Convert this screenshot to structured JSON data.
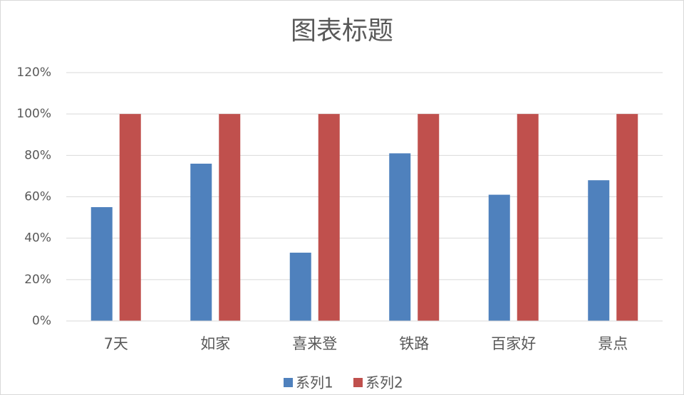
{
  "chart_data": {
    "type": "bar",
    "title": "图表标题",
    "categories": [
      "7天",
      "如家",
      "喜来登",
      "铁路",
      "百家好",
      "景点"
    ],
    "series": [
      {
        "name": "系列1",
        "color": "#4f81bd",
        "values": [
          55,
          76,
          33,
          81,
          61,
          68
        ]
      },
      {
        "name": "系列2",
        "color": "#c0504d",
        "values": [
          100,
          100,
          100,
          100,
          100,
          100
        ]
      }
    ],
    "ylim": [
      0,
      120
    ],
    "yticks": [
      {
        "value": 0,
        "label": "0%"
      },
      {
        "value": 20,
        "label": "20%"
      },
      {
        "value": 40,
        "label": "40%"
      },
      {
        "value": 60,
        "label": "60%"
      },
      {
        "value": 80,
        "label": "80%"
      },
      {
        "value": 100,
        "label": "100%"
      },
      {
        "value": 120,
        "label": "120%"
      }
    ],
    "grid": true
  }
}
